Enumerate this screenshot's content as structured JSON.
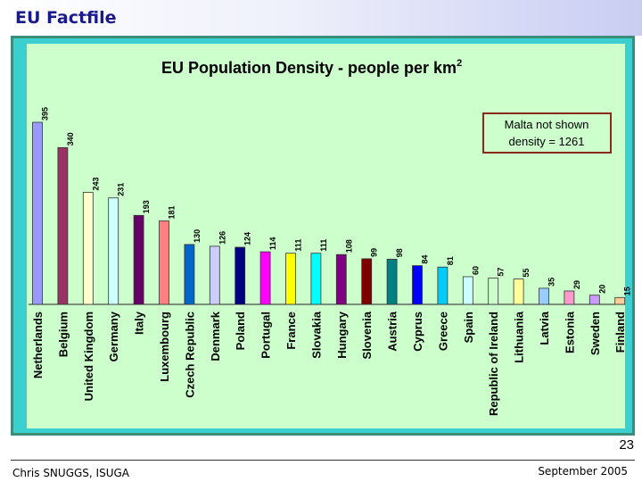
{
  "slide": {
    "title": "EU Factfile",
    "page_number": "23",
    "author": "Chris SNUGGS, ISUGA",
    "date": "September 2005"
  },
  "chart_data": {
    "type": "bar",
    "title": "EU Population Density - people per km",
    "title_superscript": "2",
    "xlabel": "",
    "ylabel": "",
    "ylim": [
      0,
      400
    ],
    "grid": false,
    "legend": "none",
    "categories": [
      "Netherlands",
      "Belgium",
      "United Kingdom",
      "Germany",
      "Italy",
      "Luxembourg",
      "Czech Republic",
      "Denmark",
      "Poland",
      "Portugal",
      "France",
      "Slovakia",
      "Hungary",
      "Slovenia",
      "Austria",
      "Cyprus",
      "Greece",
      "Spain",
      "Republic of Ireland",
      "Lithuania",
      "Latvia",
      "Estonia",
      "Sweden",
      "Finland"
    ],
    "values": [
      395,
      340,
      243,
      231,
      193,
      181,
      130,
      126,
      124,
      114,
      111,
      111,
      108,
      99,
      98,
      84,
      81,
      60,
      57,
      55,
      35,
      29,
      20,
      15
    ],
    "colors": [
      "#9999ff",
      "#993366",
      "#ffffcc",
      "#ccffff",
      "#660066",
      "#ff8080",
      "#0066cc",
      "#ccccff",
      "#000080",
      "#ff00ff",
      "#ffff00",
      "#00ffff",
      "#800080",
      "#800000",
      "#008080",
      "#0000ff",
      "#00ccff",
      "#ccffff",
      "#ccffcc",
      "#ffff99",
      "#99ccff",
      "#ff99cc",
      "#cc99ff",
      "#ffcc99"
    ],
    "annotation_line1": "Malta not shown",
    "annotation_line2": "density = 1261"
  }
}
